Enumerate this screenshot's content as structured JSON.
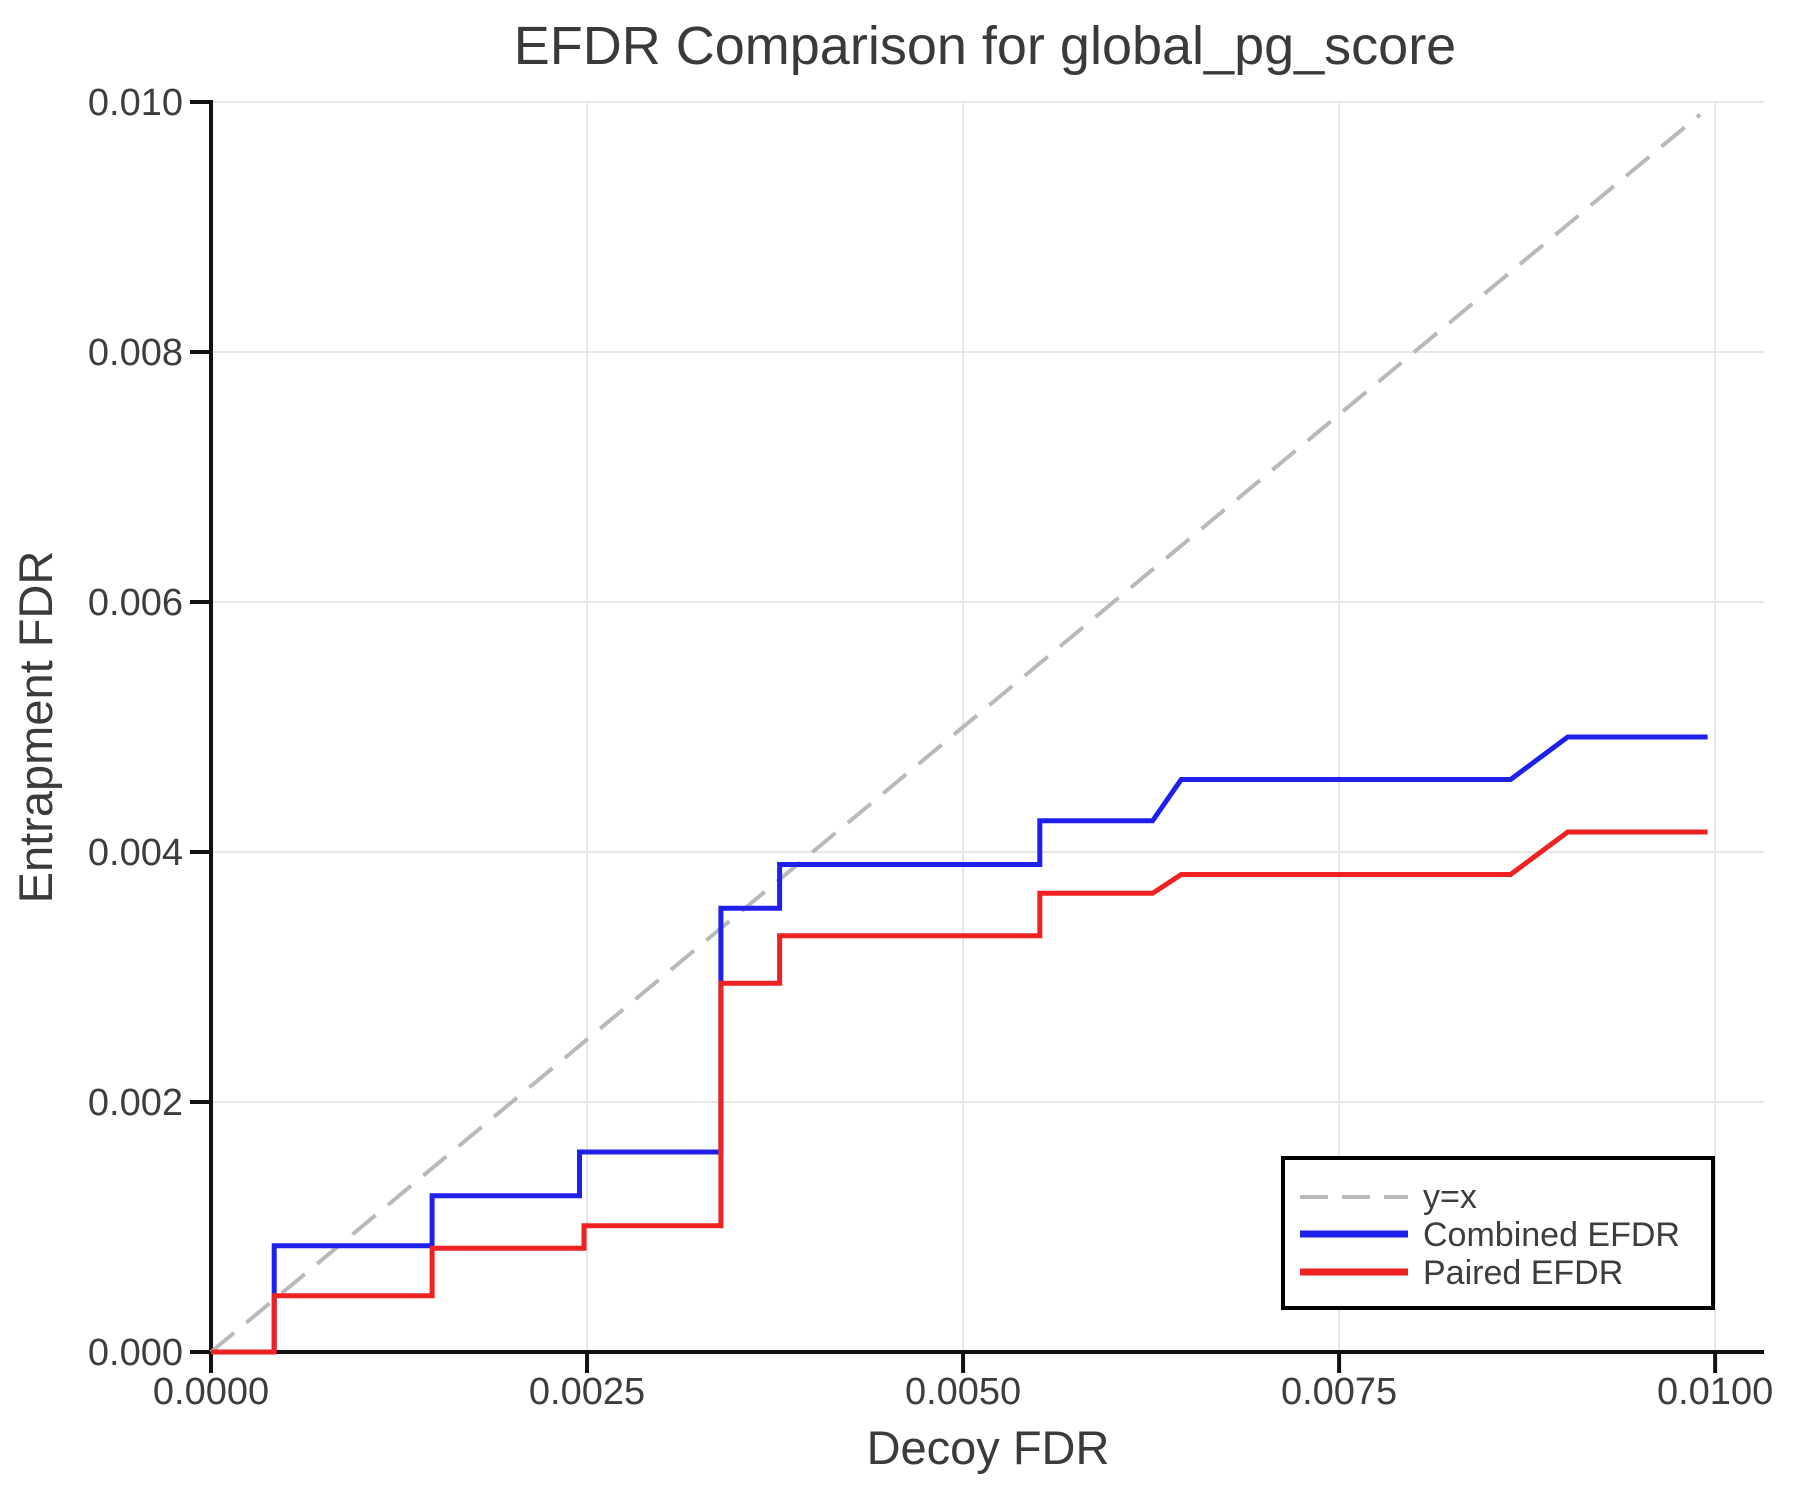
{
  "title": "EFDR Comparison for global_pg_score",
  "chart_data": {
    "type": "line",
    "title": "EFDR Comparison for global_pg_score",
    "xlabel": "Decoy FDR",
    "ylabel": "Entrapment FDR",
    "xlim": [
      0,
      0.010325
    ],
    "ylim": [
      0,
      0.01
    ],
    "grid": true,
    "legend_position": "lower right",
    "x_ticks": [
      0.0,
      0.0025,
      0.005,
      0.0075,
      0.01
    ],
    "x_tick_labels": [
      "0.0000",
      "0.0025",
      "0.0050",
      "0.0075",
      "0.0100"
    ],
    "y_ticks": [
      0.0,
      0.002,
      0.004,
      0.006,
      0.008,
      0.01
    ],
    "y_tick_labels": [
      "0.000",
      "0.002",
      "0.004",
      "0.006",
      "0.008",
      "0.010"
    ],
    "colors": {
      "grid": "#e7e7e7",
      "spine": "#111111",
      "reference": "#b9b9b9",
      "combined": "#2020ec",
      "paired": "#ee2222"
    },
    "series": [
      {
        "name": "y=x",
        "color": "#b9b9b9",
        "style": "dashed",
        "points": [
          [
            0,
            0
          ],
          [
            0.0099,
            0.0099
          ]
        ]
      },
      {
        "name": "Combined EFDR",
        "color": "#2020ec",
        "style": "solid",
        "points": [
          [
            0,
            0
          ],
          [
            0.00042,
            0
          ],
          [
            0.00042,
            0.00085
          ],
          [
            0.00147,
            0.00085
          ],
          [
            0.00147,
            0.00125
          ],
          [
            0.00245,
            0.00125
          ],
          [
            0.00245,
            0.0016
          ],
          [
            0.00339,
            0.0016
          ],
          [
            0.00339,
            0.00355
          ],
          [
            0.00378,
            0.00355
          ],
          [
            0.00378,
            0.0039
          ],
          [
            0.00551,
            0.0039
          ],
          [
            0.00551,
            0.00425
          ],
          [
            0.00626,
            0.00425
          ],
          [
            0.00645,
            0.00458
          ],
          [
            0.00864,
            0.00458
          ],
          [
            0.00902,
            0.00492
          ],
          [
            0.00995,
            0.00492
          ]
        ]
      },
      {
        "name": "Paired EFDR",
        "color": "#ee2222",
        "style": "solid",
        "points": [
          [
            0,
            0
          ],
          [
            0.00042,
            0
          ],
          [
            0.00042,
            0.00045
          ],
          [
            0.00147,
            0.00045
          ],
          [
            0.00147,
            0.00083
          ],
          [
            0.00248,
            0.00083
          ],
          [
            0.00248,
            0.00101
          ],
          [
            0.00339,
            0.00101
          ],
          [
            0.00339,
            0.00295
          ],
          [
            0.00378,
            0.00295
          ],
          [
            0.00378,
            0.00333
          ],
          [
            0.00551,
            0.00333
          ],
          [
            0.00551,
            0.00367
          ],
          [
            0.00626,
            0.00367
          ],
          [
            0.00645,
            0.00382
          ],
          [
            0.00864,
            0.00382
          ],
          [
            0.00902,
            0.00416
          ],
          [
            0.00995,
            0.00416
          ]
        ]
      }
    ]
  }
}
